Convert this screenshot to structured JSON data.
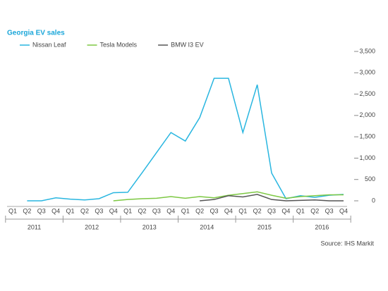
{
  "chart_data": {
    "type": "line",
    "title": "Georgia EV sales",
    "source": "Source: IHS Markit",
    "categories": [
      "Q1",
      "Q2",
      "Q3",
      "Q4",
      "Q1",
      "Q2",
      "Q3",
      "Q4",
      "Q1",
      "Q2",
      "Q3",
      "Q4",
      "Q1",
      "Q2",
      "Q3",
      "Q4",
      "Q1",
      "Q2",
      "Q3",
      "Q4",
      "Q1",
      "Q2",
      "Q3",
      "Q4"
    ],
    "groups": [
      "2011",
      "2012",
      "2013",
      "2014",
      "2015",
      "2016"
    ],
    "series": [
      {
        "name": "Nissan Leaf",
        "color": "#29b6e0",
        "values": [
          null,
          0,
          0,
          70,
          40,
          20,
          50,
          190,
          200,
          660,
          1130,
          1600,
          1400,
          1950,
          2870,
          2870,
          1600,
          2720,
          650,
          50,
          120,
          80,
          130,
          150
        ]
      },
      {
        "name": "Tesla Models",
        "color": "#7dc843",
        "values": [
          null,
          null,
          null,
          null,
          null,
          null,
          null,
          0,
          30,
          50,
          60,
          100,
          60,
          100,
          70,
          130,
          170,
          210,
          130,
          60,
          100,
          120,
          140,
          140
        ]
      },
      {
        "name": "BMW I3 EV",
        "color": "#555555",
        "values": [
          null,
          null,
          null,
          null,
          null,
          null,
          null,
          null,
          null,
          null,
          null,
          null,
          null,
          0,
          30,
          120,
          90,
          150,
          30,
          0,
          10,
          20,
          0,
          0
        ]
      }
    ],
    "ylim": [
      0,
      3500
    ],
    "yticks": [
      0,
      {
        "value": 500,
        "label": "500"
      },
      {
        "value": 1000,
        "label": "1,000"
      },
      {
        "value": 1500,
        "label": "1,500"
      },
      {
        "value": 2000,
        "label": "2,000"
      },
      {
        "value": 2500,
        "label": "2,500"
      },
      {
        "value": 3000,
        "label": "3,000"
      },
      {
        "value": 3500,
        "label": "3,500"
      }
    ],
    "legend": "top-left"
  }
}
